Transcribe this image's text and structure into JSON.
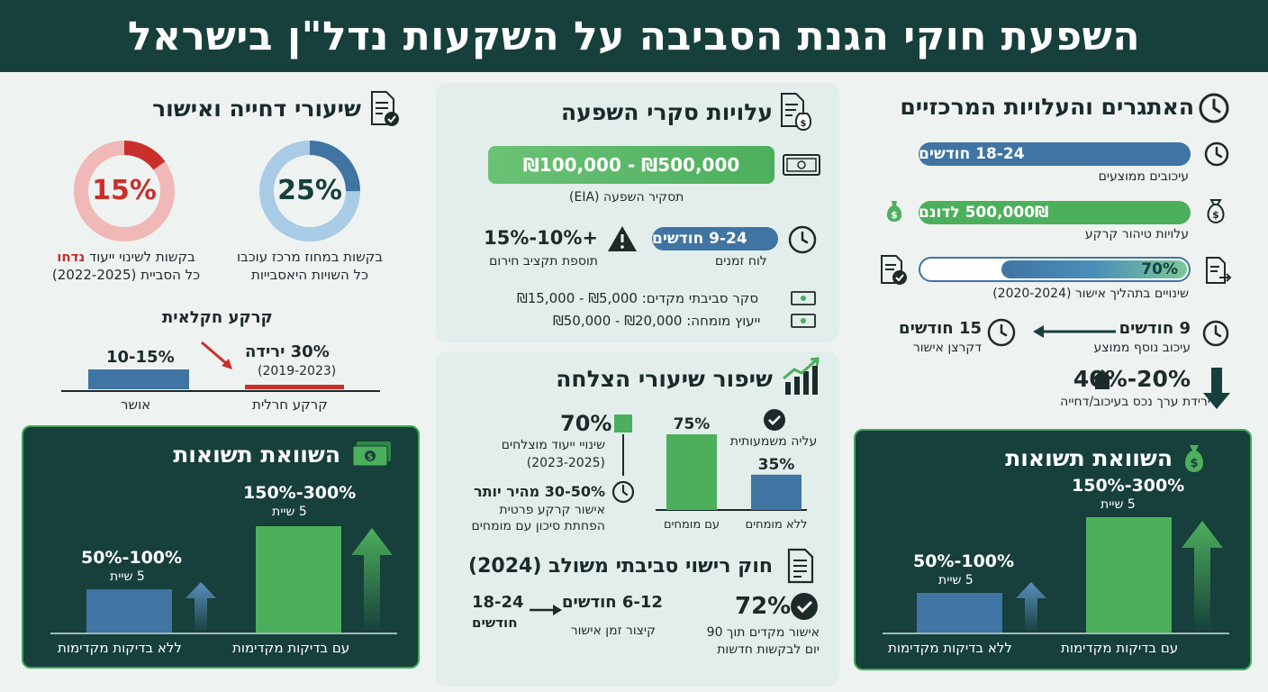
{
  "header": {
    "title": "השפעת חוקי הגנת הסביבה על השקעות נדל\"ן בישראל"
  },
  "right": {
    "title": "האתגרים והעלויות המרכזיים",
    "delay_pill": "18-24 חודשים",
    "delay_label": "עיכובים ממוצעים",
    "cleanup_pill": "500,000₪ לדונם",
    "cleanup_label": "עלויות טיהור קרקע",
    "changes_pill": "70%",
    "changes_progress": 0.7,
    "changes_label": "שינויים בתהליך אישור (2020-2024)",
    "extra_delay_value": "9 חודשים",
    "extra_delay_label": "עיכוב נוסף ממוצע",
    "corridor_value": "15 חודשים",
    "corridor_label": "דקרצן אישור",
    "value_drop": "20%-40%",
    "value_drop_label": "ירידת ערך נכס בעיכוב/דחייה",
    "returns": {
      "title": "השוואת תשואות",
      "high_value": "150%-300%",
      "high_years": "5 שיית",
      "low_value": "50%-100%",
      "low_years": "5 שיית",
      "with_label": "עם בדיקות מקדימות",
      "without_label": "ללא בדיקות מקדימות"
    }
  },
  "center": {
    "costs_title": "עלויות סקרי השפעה",
    "eia_pill": "₪100,000 - ₪500,000",
    "eia_label": "תסקיר השפעה (EIA)",
    "timeline_pill": "9-24 חודשים",
    "timeline_label": "לוח זמנים",
    "budget_value": "+10%-15%",
    "budget_label": "תוספת תקציב חירום",
    "survey_label": "סקר סביבתי מקדים: ₪5,000 - ₪15,000",
    "expert_label": "ייעוץ מומחה: ₪20,000 - ₪50,000",
    "success_title": "שיפור שיעורי הצלחה",
    "zoning_value": "70%",
    "zoning_label": "שינויי ייעוד מוצלחים",
    "zoning_years": "(2023-2025)",
    "faster_value": "30-50% מהיר יותר",
    "faster_label1": "אישור קרקע פרטית",
    "faster_label2": "הפחתת סיכון עם מומחים",
    "rise_label": "עליה משמעותית",
    "bar_experts": 75,
    "bar_experts_label": "75%",
    "bar_no_experts": 35,
    "bar_no_experts_label": "35%",
    "with_experts": "עם מומחים",
    "without_experts": "ללא מומחים",
    "law_title": "חוק רישוי סביבתי משולב (2024)",
    "approval_value": "72%",
    "approval_label1": "אישור מקדים תוך 90",
    "approval_label2": "יום לבקשות חדשות",
    "time_from": "18-24",
    "time_from_unit": "חודשים",
    "time_to": "6-12 חודשים",
    "time_label": "קיצור זמן אישור"
  },
  "left": {
    "title": "שיעורי דחייה ואישור",
    "donut_delay_value": "25%",
    "donut_delay_pct": 25,
    "donut_delay_label1": "בקשות במחוז מרכז עוכבו",
    "donut_delay_label2": "כל השויות היאסבייות",
    "donut_reject_value": "15%",
    "donut_reject_pct": 15,
    "donut_reject_label1a": "בקשות לשינוי ייעוד ",
    "donut_reject_label1b": "נדחו",
    "donut_reject_label2": "כל הסביית (2022-2025)",
    "agri_title": "קרקע חקלאית",
    "approved_value": "10-15%",
    "approved_label": "אושר",
    "drop_value": "30% ירידה",
    "drop_years": "(2019-2023)",
    "agri_label": "קרקע חרלית",
    "returns": {
      "title": "השוואת תשואות",
      "high_value": "150%-300%",
      "high_years": "5 שיית",
      "low_value": "50%-100%",
      "low_years": "5 שיית",
      "with_label": "עם בדיקות מקדימות",
      "without_label": "ללא בדיקות מקדימות"
    }
  },
  "colors": {
    "header": "#173f3b",
    "green": "#4caf5c",
    "blue": "#3f74a3",
    "red": "#c9302c",
    "light_blue": "#a9cbe6",
    "light_red": "#f0b8b6"
  }
}
